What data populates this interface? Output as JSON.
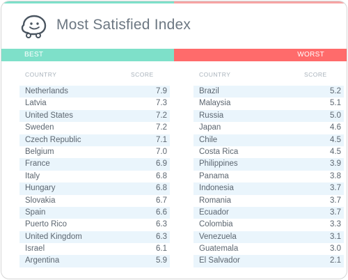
{
  "header": {
    "title": "Most Satisfied Index",
    "logo_icon": "waze-icon"
  },
  "colors": {
    "best": "#7ee0c9",
    "worst": "#ff6b6b",
    "row_stripe": "#eaf5fc",
    "text": "#5c6670"
  },
  "chart_data": {
    "type": "table",
    "title": "Most Satisfied Index",
    "tables": [
      {
        "label": "BEST",
        "columns": [
          "COUNTRY",
          "SCORE"
        ],
        "rows": [
          {
            "country": "Netherlands",
            "score": "7.9"
          },
          {
            "country": "Latvia",
            "score": "7.3"
          },
          {
            "country": "United States",
            "score": "7.2"
          },
          {
            "country": "Sweden",
            "score": "7.2"
          },
          {
            "country": "Czech Republic",
            "score": "7.1"
          },
          {
            "country": "Belgium",
            "score": "7.0"
          },
          {
            "country": "France",
            "score": "6.9"
          },
          {
            "country": "Italy",
            "score": "6.8"
          },
          {
            "country": "Hungary",
            "score": "6.8"
          },
          {
            "country": "Slovakia",
            "score": "6.7"
          },
          {
            "country": "Spain",
            "score": "6.6"
          },
          {
            "country": "Puerto Rico",
            "score": "6.3"
          },
          {
            "country": "United Kingdom",
            "score": "6.3"
          },
          {
            "country": "Israel",
            "score": "6.1"
          },
          {
            "country": "Argentina",
            "score": "5.9"
          }
        ]
      },
      {
        "label": "WORST",
        "columns": [
          "COUNTRY",
          "SCORE"
        ],
        "rows": [
          {
            "country": "Brazil",
            "score": "5.2"
          },
          {
            "country": "Malaysia",
            "score": "5.1"
          },
          {
            "country": "Russia",
            "score": "5.0"
          },
          {
            "country": "Japan",
            "score": "4.6"
          },
          {
            "country": "Chile",
            "score": "4.5"
          },
          {
            "country": "Costa Rica",
            "score": "4.5"
          },
          {
            "country": "Philippines",
            "score": "3.9"
          },
          {
            "country": "Panama",
            "score": "3.8"
          },
          {
            "country": "Indonesia",
            "score": "3.7"
          },
          {
            "country": "Romania",
            "score": "3.7"
          },
          {
            "country": "Ecuador",
            "score": "3.7"
          },
          {
            "country": "Colombia",
            "score": "3.3"
          },
          {
            "country": "Venezuela",
            "score": "3.1"
          },
          {
            "country": "Guatemala",
            "score": "3.0"
          },
          {
            "country": "El Salvador",
            "score": "2.1"
          }
        ]
      }
    ]
  }
}
